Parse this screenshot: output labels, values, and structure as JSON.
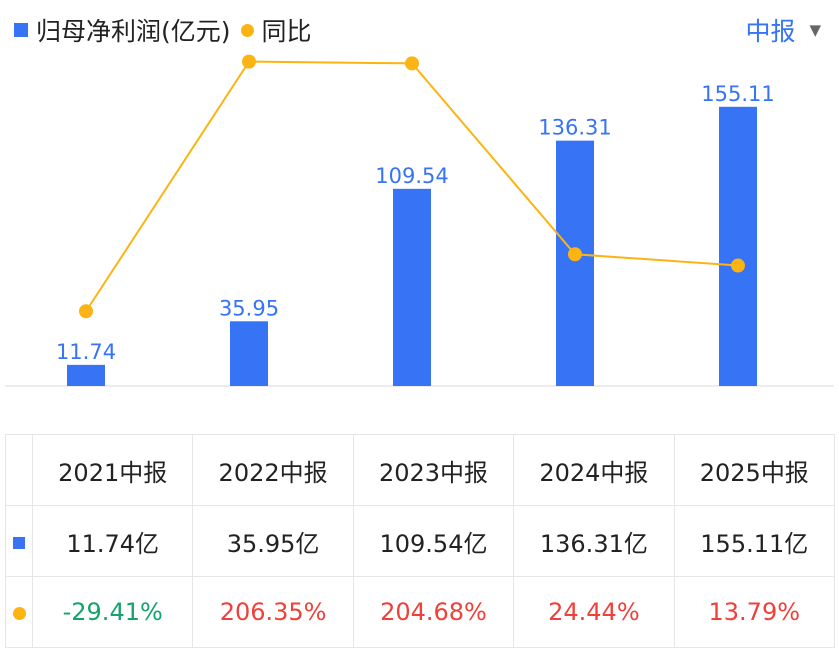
{
  "legend": {
    "bar_label": "归母净利润(亿元)",
    "line_label": "同比"
  },
  "period_selector": {
    "label": "中报",
    "caret": "▼"
  },
  "colors": {
    "bar": "#3673f5",
    "line": "#fbb414",
    "bar_label": "#3673f5",
    "positive": "#f0403a",
    "negative": "#15a36b"
  },
  "chart_data": {
    "type": "bar",
    "categories": [
      "2021中报",
      "2022中报",
      "2023中报",
      "2024中报",
      "2025中报"
    ],
    "series": [
      {
        "name": "归母净利润(亿元)",
        "type": "bar",
        "values": [
          11.74,
          35.95,
          109.54,
          136.31,
          155.11
        ],
        "labels": [
          "11.74",
          "35.95",
          "109.54",
          "136.31",
          "155.11"
        ]
      },
      {
        "name": "同比",
        "type": "line",
        "values": [
          -29.41,
          206.35,
          204.68,
          24.44,
          13.79
        ]
      }
    ],
    "bar_ylim": [
      0,
      170
    ],
    "line_ylim": [
      -100,
      240
    ]
  },
  "table": {
    "headers": [
      "2021中报",
      "2022中报",
      "2023中报",
      "2024中报",
      "2025中报"
    ],
    "profit_row": [
      "11.74亿",
      "35.95亿",
      "109.54亿",
      "136.31亿",
      "155.11亿"
    ],
    "yoy_row": [
      "-29.41%",
      "206.35%",
      "204.68%",
      "24.44%",
      "13.79%"
    ]
  }
}
